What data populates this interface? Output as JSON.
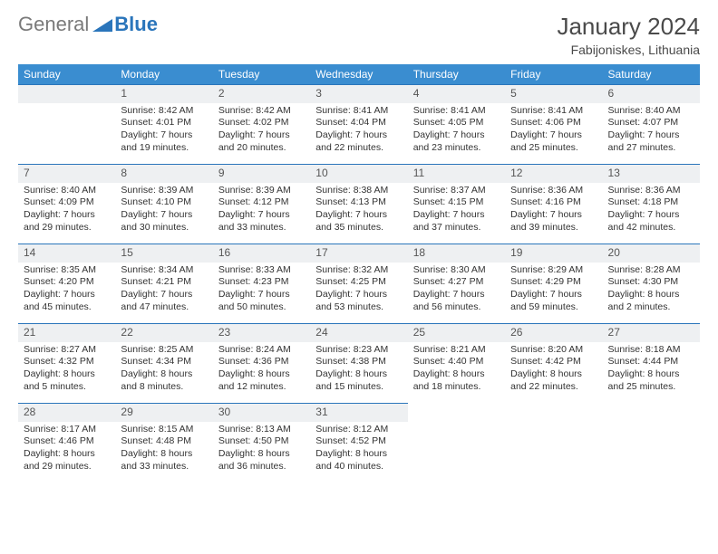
{
  "brand": {
    "gray": "General",
    "blue": "Blue",
    "shape_color": "#2a75bb"
  },
  "title": "January 2024",
  "location": "Fabijoniskes, Lithuania",
  "colors": {
    "header_bg": "#3a8dd0",
    "header_text": "#ffffff",
    "daynum_bg": "#eef0f2",
    "daynum_border": "#2a75bb",
    "body_text": "#333333"
  },
  "day_headers": [
    "Sunday",
    "Monday",
    "Tuesday",
    "Wednesday",
    "Thursday",
    "Friday",
    "Saturday"
  ],
  "start_offset": 1,
  "days": [
    {
      "n": "1",
      "sr": "8:42 AM",
      "ss": "4:01 PM",
      "dl": "7 hours and 19 minutes."
    },
    {
      "n": "2",
      "sr": "8:42 AM",
      "ss": "4:02 PM",
      "dl": "7 hours and 20 minutes."
    },
    {
      "n": "3",
      "sr": "8:41 AM",
      "ss": "4:04 PM",
      "dl": "7 hours and 22 minutes."
    },
    {
      "n": "4",
      "sr": "8:41 AM",
      "ss": "4:05 PM",
      "dl": "7 hours and 23 minutes."
    },
    {
      "n": "5",
      "sr": "8:41 AM",
      "ss": "4:06 PM",
      "dl": "7 hours and 25 minutes."
    },
    {
      "n": "6",
      "sr": "8:40 AM",
      "ss": "4:07 PM",
      "dl": "7 hours and 27 minutes."
    },
    {
      "n": "7",
      "sr": "8:40 AM",
      "ss": "4:09 PM",
      "dl": "7 hours and 29 minutes."
    },
    {
      "n": "8",
      "sr": "8:39 AM",
      "ss": "4:10 PM",
      "dl": "7 hours and 30 minutes."
    },
    {
      "n": "9",
      "sr": "8:39 AM",
      "ss": "4:12 PM",
      "dl": "7 hours and 33 minutes."
    },
    {
      "n": "10",
      "sr": "8:38 AM",
      "ss": "4:13 PM",
      "dl": "7 hours and 35 minutes."
    },
    {
      "n": "11",
      "sr": "8:37 AM",
      "ss": "4:15 PM",
      "dl": "7 hours and 37 minutes."
    },
    {
      "n": "12",
      "sr": "8:36 AM",
      "ss": "4:16 PM",
      "dl": "7 hours and 39 minutes."
    },
    {
      "n": "13",
      "sr": "8:36 AM",
      "ss": "4:18 PM",
      "dl": "7 hours and 42 minutes."
    },
    {
      "n": "14",
      "sr": "8:35 AM",
      "ss": "4:20 PM",
      "dl": "7 hours and 45 minutes."
    },
    {
      "n": "15",
      "sr": "8:34 AM",
      "ss": "4:21 PM",
      "dl": "7 hours and 47 minutes."
    },
    {
      "n": "16",
      "sr": "8:33 AM",
      "ss": "4:23 PM",
      "dl": "7 hours and 50 minutes."
    },
    {
      "n": "17",
      "sr": "8:32 AM",
      "ss": "4:25 PM",
      "dl": "7 hours and 53 minutes."
    },
    {
      "n": "18",
      "sr": "8:30 AM",
      "ss": "4:27 PM",
      "dl": "7 hours and 56 minutes."
    },
    {
      "n": "19",
      "sr": "8:29 AM",
      "ss": "4:29 PM",
      "dl": "7 hours and 59 minutes."
    },
    {
      "n": "20",
      "sr": "8:28 AM",
      "ss": "4:30 PM",
      "dl": "8 hours and 2 minutes."
    },
    {
      "n": "21",
      "sr": "8:27 AM",
      "ss": "4:32 PM",
      "dl": "8 hours and 5 minutes."
    },
    {
      "n": "22",
      "sr": "8:25 AM",
      "ss": "4:34 PM",
      "dl": "8 hours and 8 minutes."
    },
    {
      "n": "23",
      "sr": "8:24 AM",
      "ss": "4:36 PM",
      "dl": "8 hours and 12 minutes."
    },
    {
      "n": "24",
      "sr": "8:23 AM",
      "ss": "4:38 PM",
      "dl": "8 hours and 15 minutes."
    },
    {
      "n": "25",
      "sr": "8:21 AM",
      "ss": "4:40 PM",
      "dl": "8 hours and 18 minutes."
    },
    {
      "n": "26",
      "sr": "8:20 AM",
      "ss": "4:42 PM",
      "dl": "8 hours and 22 minutes."
    },
    {
      "n": "27",
      "sr": "8:18 AM",
      "ss": "4:44 PM",
      "dl": "8 hours and 25 minutes."
    },
    {
      "n": "28",
      "sr": "8:17 AM",
      "ss": "4:46 PM",
      "dl": "8 hours and 29 minutes."
    },
    {
      "n": "29",
      "sr": "8:15 AM",
      "ss": "4:48 PM",
      "dl": "8 hours and 33 minutes."
    },
    {
      "n": "30",
      "sr": "8:13 AM",
      "ss": "4:50 PM",
      "dl": "8 hours and 36 minutes."
    },
    {
      "n": "31",
      "sr": "8:12 AM",
      "ss": "4:52 PM",
      "dl": "8 hours and 40 minutes."
    }
  ],
  "labels": {
    "sunrise": "Sunrise:",
    "sunset": "Sunset:",
    "daylight": "Daylight:"
  }
}
